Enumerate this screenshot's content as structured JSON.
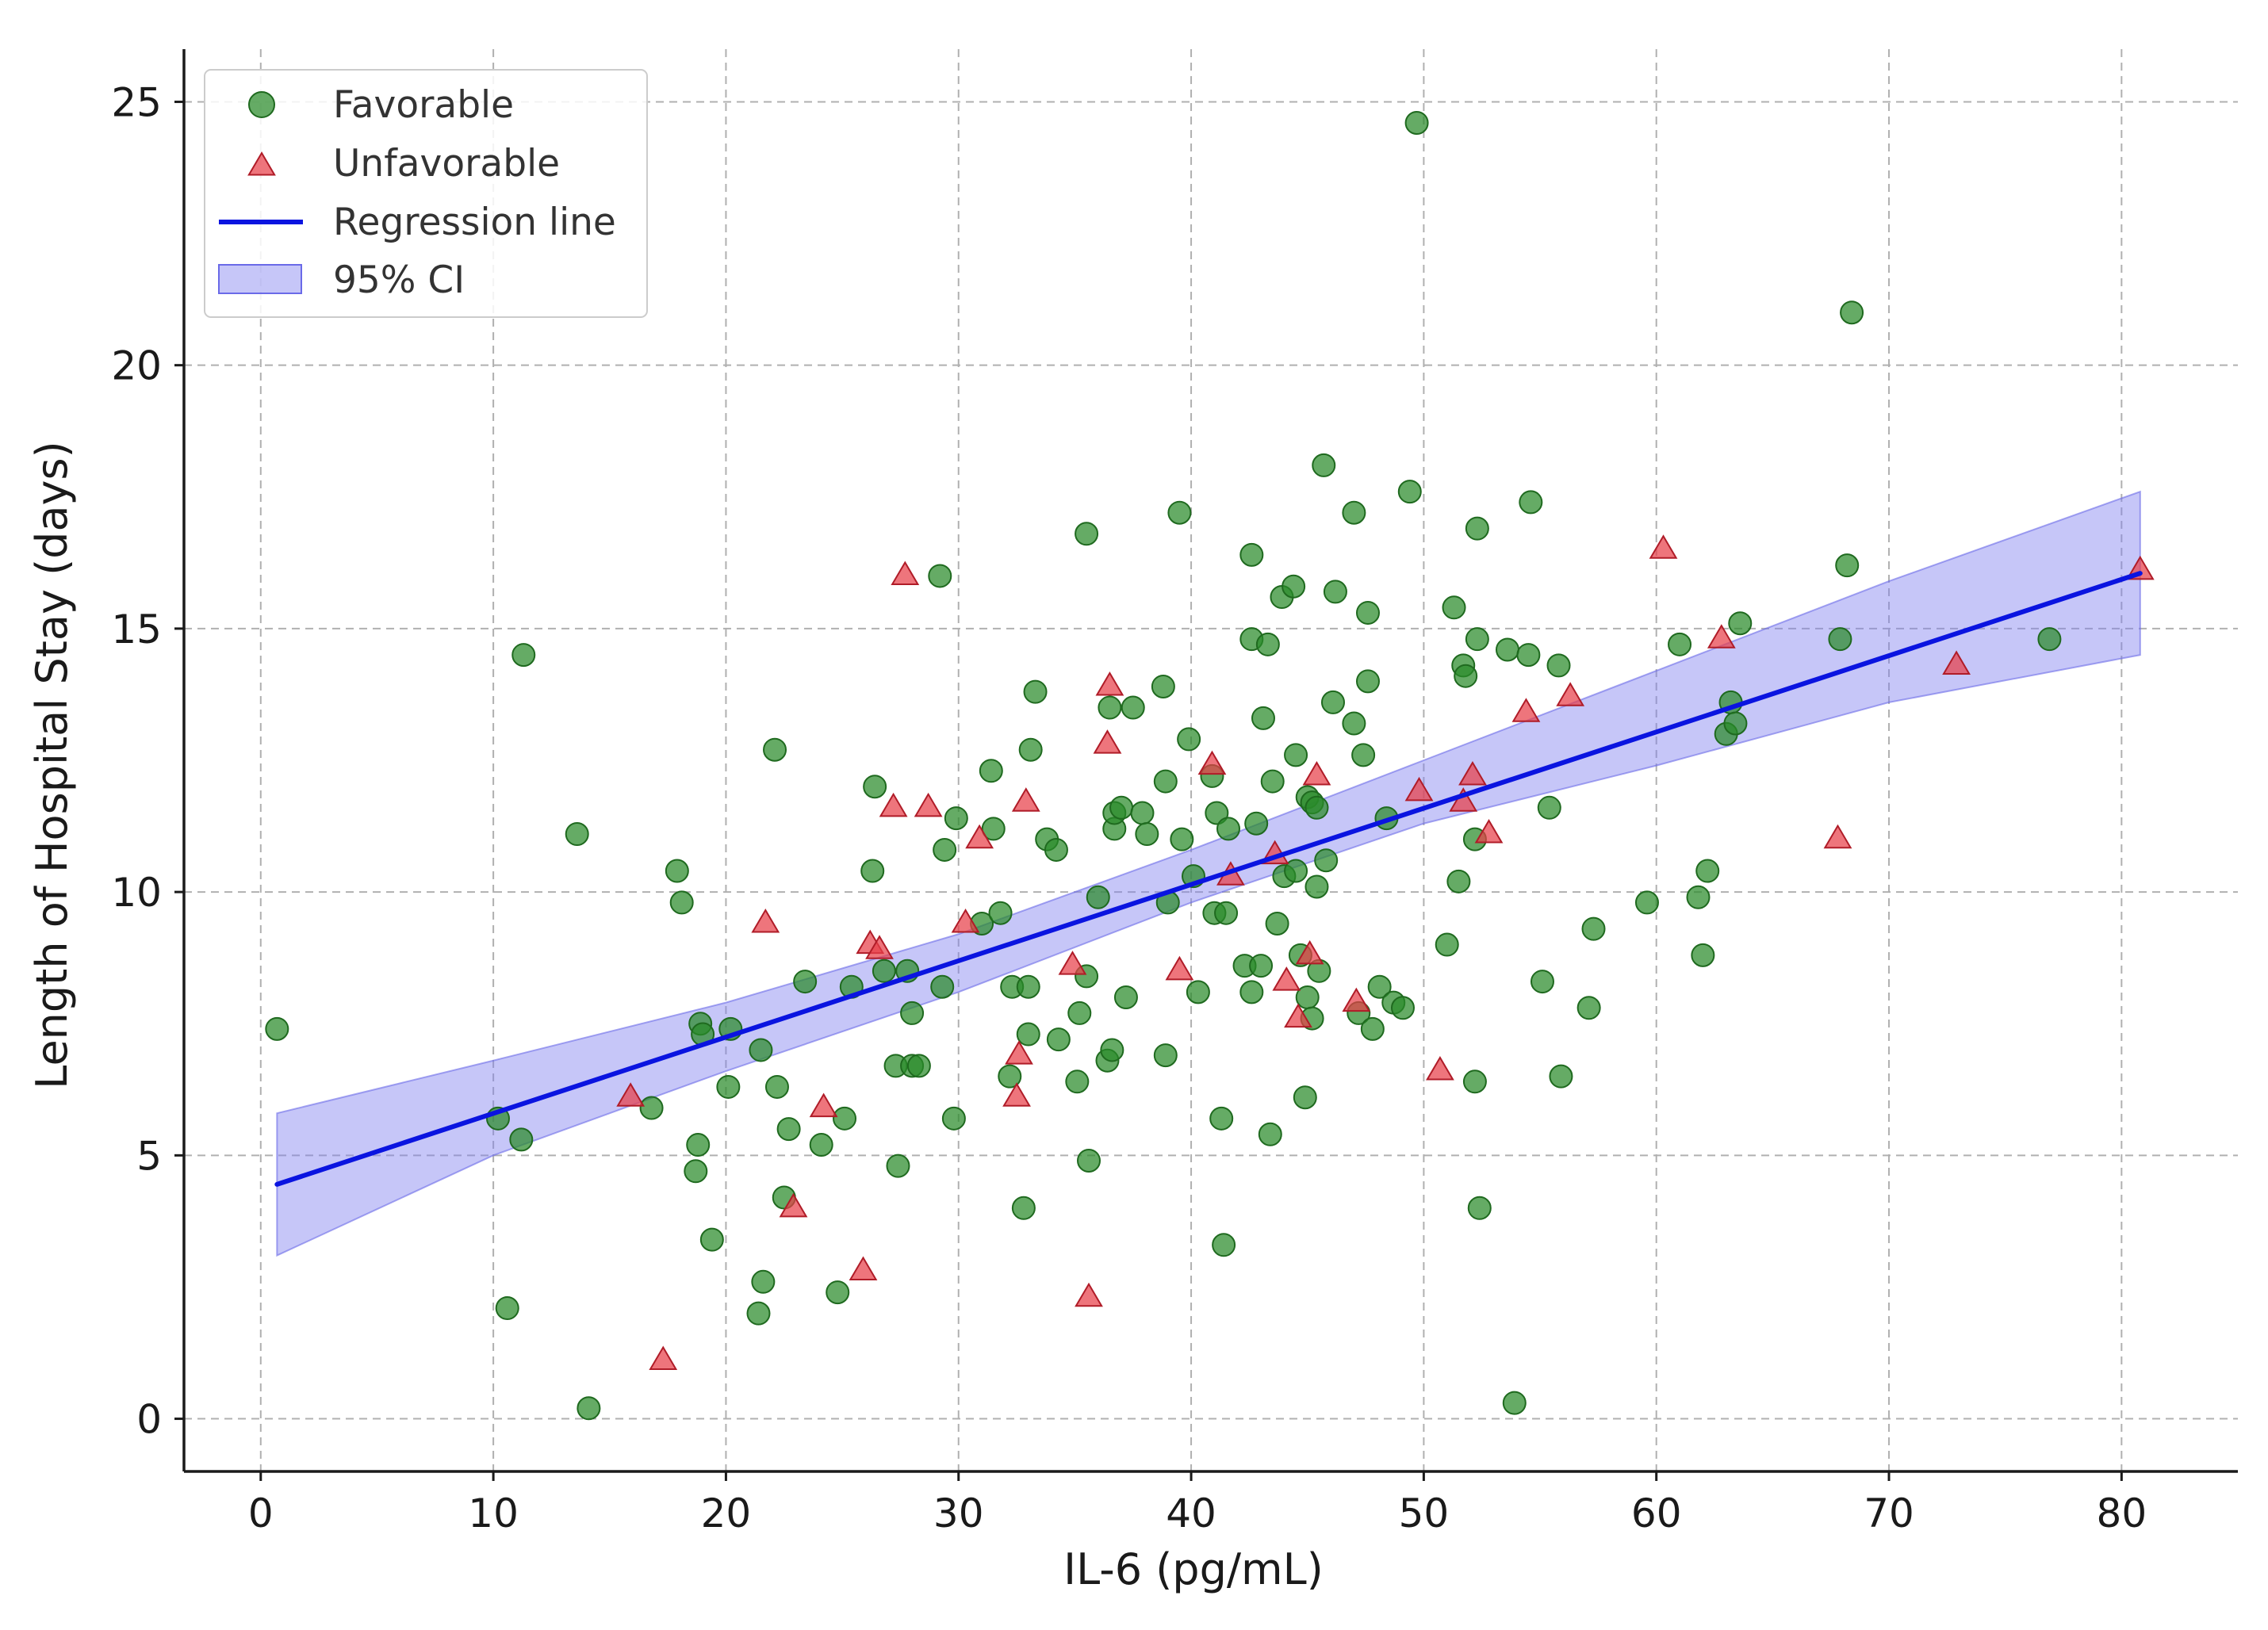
{
  "chart_data": {
    "type": "scatter",
    "title": "",
    "xlabel": "IL-6 (pg/mL)",
    "ylabel": "Length of Hospital Stay (days)",
    "xlim": [
      -3.3,
      85
    ],
    "ylim": [
      -1.0,
      26.0
    ],
    "xticks": [
      0,
      10,
      20,
      30,
      40,
      50,
      60,
      70,
      80
    ],
    "yticks": [
      0,
      5,
      10,
      15,
      20,
      25
    ],
    "grid": true,
    "legend_position": "upper-left",
    "colors": {
      "favorable": "#2a8a2a",
      "favorable_edge": "#1f6a1f",
      "unfavorable": "#e8404a",
      "unfavorable_edge": "#b01c28",
      "regression": "#0a14e0",
      "ci_fill": "#8080f0",
      "ci_edge": "#6a6ae8"
    },
    "series": [
      {
        "name": "Favorable",
        "marker": "circle",
        "points": [
          [
            0.7,
            7.4
          ],
          [
            10.2,
            5.7
          ],
          [
            10.6,
            2.1
          ],
          [
            11.2,
            5.3
          ],
          [
            11.3,
            14.5
          ],
          [
            13.6,
            11.1
          ],
          [
            14.1,
            0.2
          ],
          [
            16.8,
            5.9
          ],
          [
            17.9,
            10.4
          ],
          [
            18.1,
            9.8
          ],
          [
            18.8,
            5.2
          ],
          [
            18.7,
            4.7
          ],
          [
            18.9,
            7.5
          ],
          [
            19.0,
            7.3
          ],
          [
            19.4,
            3.4
          ],
          [
            20.1,
            6.3
          ],
          [
            20.2,
            7.4
          ],
          [
            21.4,
            2.0
          ],
          [
            21.5,
            7.0
          ],
          [
            21.6,
            2.6
          ],
          [
            22.1,
            12.7
          ],
          [
            22.2,
            6.3
          ],
          [
            22.7,
            5.5
          ],
          [
            22.5,
            4.2
          ],
          [
            23.4,
            8.3
          ],
          [
            24.1,
            5.2
          ],
          [
            24.8,
            2.4
          ],
          [
            25.1,
            5.7
          ],
          [
            25.4,
            8.2
          ],
          [
            26.3,
            10.4
          ],
          [
            26.4,
            12.0
          ],
          [
            26.8,
            8.5
          ],
          [
            27.4,
            4.8
          ],
          [
            27.3,
            6.7
          ],
          [
            27.8,
            8.5
          ],
          [
            28.0,
            6.7
          ],
          [
            28.0,
            7.7
          ],
          [
            28.3,
            6.7
          ],
          [
            29.2,
            16.0
          ],
          [
            29.3,
            8.2
          ],
          [
            29.4,
            10.8
          ],
          [
            29.8,
            5.7
          ],
          [
            29.9,
            11.4
          ],
          [
            31.0,
            9.4
          ],
          [
            31.4,
            12.3
          ],
          [
            31.5,
            11.2
          ],
          [
            31.8,
            9.6
          ],
          [
            32.2,
            6.5
          ],
          [
            32.3,
            8.2
          ],
          [
            32.8,
            4.0
          ],
          [
            33.0,
            8.2
          ],
          [
            33.0,
            7.3
          ],
          [
            33.1,
            12.7
          ],
          [
            33.3,
            13.8
          ],
          [
            33.8,
            11.0
          ],
          [
            34.2,
            10.8
          ],
          [
            34.3,
            7.2
          ],
          [
            35.1,
            6.4
          ],
          [
            35.2,
            7.7
          ],
          [
            35.5,
            8.4
          ],
          [
            35.5,
            16.8
          ],
          [
            35.6,
            4.9
          ],
          [
            36.0,
            9.9
          ],
          [
            36.4,
            6.8
          ],
          [
            36.5,
            13.5
          ],
          [
            36.6,
            7.0
          ],
          [
            36.7,
            11.2
          ],
          [
            36.7,
            11.5
          ],
          [
            37.0,
            11.6
          ],
          [
            37.2,
            8.0
          ],
          [
            37.5,
            13.5
          ],
          [
            37.9,
            11.5
          ],
          [
            38.1,
            11.1
          ],
          [
            38.8,
            13.9
          ],
          [
            38.9,
            12.1
          ],
          [
            38.9,
            6.9
          ],
          [
            39.0,
            9.8
          ],
          [
            39.5,
            17.2
          ],
          [
            39.6,
            11.0
          ],
          [
            39.9,
            12.9
          ],
          [
            40.1,
            10.3
          ],
          [
            40.3,
            8.1
          ],
          [
            40.9,
            12.2
          ],
          [
            41.0,
            9.6
          ],
          [
            41.1,
            11.5
          ],
          [
            41.3,
            5.7
          ],
          [
            41.4,
            3.3
          ],
          [
            41.5,
            9.6
          ],
          [
            41.6,
            11.2
          ],
          [
            42.3,
            8.6
          ],
          [
            42.6,
            8.1
          ],
          [
            42.6,
            14.8
          ],
          [
            42.6,
            16.4
          ],
          [
            42.8,
            11.3
          ],
          [
            43.0,
            8.6
          ],
          [
            43.1,
            13.3
          ],
          [
            43.3,
            14.7
          ],
          [
            43.4,
            5.4
          ],
          [
            43.5,
            12.1
          ],
          [
            43.7,
            9.4
          ],
          [
            43.9,
            15.6
          ],
          [
            44.0,
            10.3
          ],
          [
            44.4,
            15.8
          ],
          [
            44.5,
            10.4
          ],
          [
            44.5,
            12.6
          ],
          [
            44.7,
            8.8
          ],
          [
            44.9,
            6.1
          ],
          [
            45.0,
            8.0
          ],
          [
            45.0,
            11.8
          ],
          [
            45.2,
            11.7
          ],
          [
            45.2,
            7.6
          ],
          [
            45.4,
            10.1
          ],
          [
            45.4,
            11.6
          ],
          [
            45.5,
            8.5
          ],
          [
            45.7,
            18.1
          ],
          [
            45.8,
            10.6
          ],
          [
            46.1,
            13.6
          ],
          [
            46.2,
            15.7
          ],
          [
            47.0,
            17.2
          ],
          [
            47.0,
            13.2
          ],
          [
            47.2,
            7.7
          ],
          [
            47.4,
            12.6
          ],
          [
            47.6,
            15.3
          ],
          [
            47.6,
            14.0
          ],
          [
            47.8,
            7.4
          ],
          [
            48.1,
            8.2
          ],
          [
            48.4,
            11.4
          ],
          [
            48.7,
            7.9
          ],
          [
            49.1,
            7.8
          ],
          [
            49.4,
            17.6
          ],
          [
            49.7,
            24.6
          ],
          [
            51.0,
            9.0
          ],
          [
            51.3,
            15.4
          ],
          [
            51.5,
            10.2
          ],
          [
            51.7,
            14.3
          ],
          [
            51.8,
            14.1
          ],
          [
            52.2,
            11.0
          ],
          [
            52.2,
            6.4
          ],
          [
            52.3,
            16.9
          ],
          [
            52.3,
            14.8
          ],
          [
            52.4,
            4.0
          ],
          [
            53.6,
            14.6
          ],
          [
            53.9,
            0.3
          ],
          [
            54.5,
            14.5
          ],
          [
            54.6,
            17.4
          ],
          [
            55.1,
            8.3
          ],
          [
            55.4,
            11.6
          ],
          [
            55.8,
            14.3
          ],
          [
            55.9,
            6.5
          ],
          [
            57.1,
            7.8
          ],
          [
            57.3,
            9.3
          ],
          [
            59.6,
            9.8
          ],
          [
            61.0,
            14.7
          ],
          [
            61.8,
            9.9
          ],
          [
            62.0,
            8.8
          ],
          [
            62.2,
            10.4
          ],
          [
            63.0,
            13.0
          ],
          [
            63.2,
            13.6
          ],
          [
            63.4,
            13.2
          ],
          [
            63.6,
            15.1
          ],
          [
            67.9,
            14.8
          ],
          [
            68.2,
            16.2
          ],
          [
            68.4,
            21.0
          ],
          [
            76.9,
            14.8
          ]
        ]
      },
      {
        "name": "Unfavorable",
        "marker": "triangle",
        "points": [
          [
            15.9,
            6.1
          ],
          [
            17.3,
            1.1
          ],
          [
            21.7,
            9.4
          ],
          [
            22.9,
            4.0
          ],
          [
            24.2,
            5.9
          ],
          [
            25.9,
            2.8
          ],
          [
            26.2,
            9.0
          ],
          [
            26.6,
            8.9
          ],
          [
            27.2,
            11.6
          ],
          [
            27.7,
            16.0
          ],
          [
            28.7,
            11.6
          ],
          [
            30.3,
            9.4
          ],
          [
            30.9,
            11.0
          ],
          [
            32.5,
            6.1
          ],
          [
            32.6,
            6.9
          ],
          [
            32.9,
            11.7
          ],
          [
            34.9,
            8.6
          ],
          [
            35.6,
            2.3
          ],
          [
            36.4,
            12.8
          ],
          [
            36.5,
            13.9
          ],
          [
            39.5,
            8.5
          ],
          [
            40.9,
            12.4
          ],
          [
            41.7,
            10.3
          ],
          [
            43.6,
            10.7
          ],
          [
            44.1,
            8.3
          ],
          [
            44.6,
            7.6
          ],
          [
            45.1,
            8.8
          ],
          [
            45.4,
            12.2
          ],
          [
            47.1,
            7.9
          ],
          [
            49.8,
            11.9
          ],
          [
            50.7,
            6.6
          ],
          [
            51.7,
            11.7
          ],
          [
            52.1,
            12.2
          ],
          [
            52.8,
            11.1
          ],
          [
            54.4,
            13.4
          ],
          [
            56.3,
            13.7
          ],
          [
            60.3,
            16.5
          ],
          [
            62.8,
            14.8
          ],
          [
            67.8,
            11.0
          ],
          [
            72.9,
            14.3
          ],
          [
            80.8,
            16.1
          ]
        ]
      },
      {
        "name": "Regression line",
        "type": "line",
        "x": [
          0.7,
          80.8
        ],
        "y": [
          4.45,
          16.05
        ]
      },
      {
        "name": "95% CI",
        "type": "band",
        "x": [
          0.7,
          10,
          20,
          30,
          40,
          50,
          60,
          70,
          80.8
        ],
        "lower": [
          3.1,
          5.0,
          6.6,
          8.1,
          9.8,
          11.3,
          12.4,
          13.6,
          14.5
        ],
        "upper": [
          5.8,
          6.8,
          7.9,
          9.2,
          10.8,
          12.5,
          14.2,
          15.9,
          17.6
        ]
      }
    ]
  }
}
